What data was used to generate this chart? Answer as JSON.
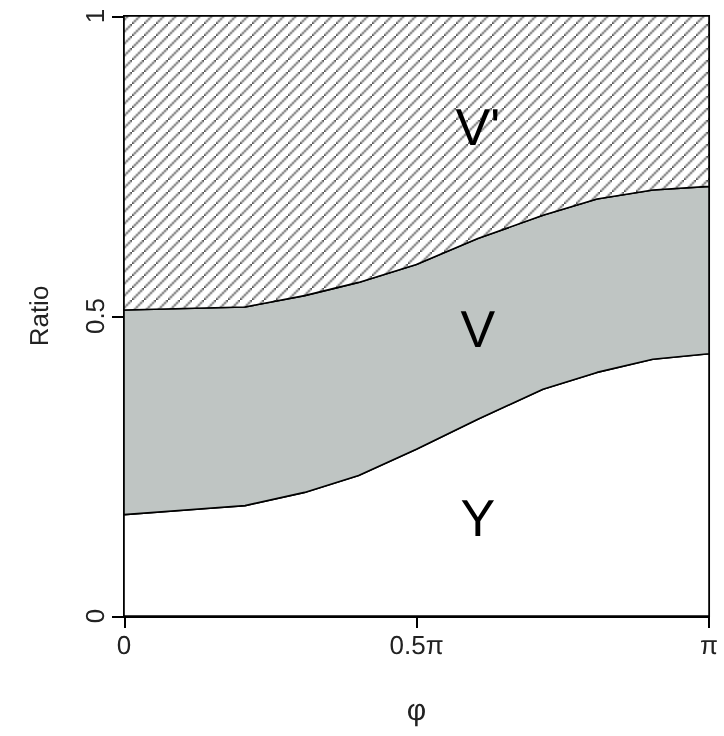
{
  "chart_data": {
    "type": "area",
    "stacked": true,
    "xlabel": "φ",
    "ylabel": "Ratio",
    "x": [
      0,
      0.65,
      0.97,
      1.26,
      1.57,
      1.9,
      2.25,
      2.54,
      2.84,
      3.1416
    ],
    "xlim": [
      0,
      3.1416
    ],
    "xticks": [
      {
        "value": 0,
        "label": "0"
      },
      {
        "value": 1.5708,
        "label": "0.5π"
      },
      {
        "value": 3.1416,
        "label": "π"
      }
    ],
    "ylim": [
      0,
      1
    ],
    "yticks": [
      0,
      0.5,
      1
    ],
    "grid": false,
    "legend": false,
    "series": [
      {
        "name": "Y",
        "color": "#ffffff",
        "values": [
          0.169,
          0.184,
          0.206,
          0.234,
          0.278,
          0.328,
          0.378,
          0.406,
          0.428,
          0.437
        ]
      },
      {
        "name": "V",
        "color": "#bfc5c3",
        "values": [
          0.341,
          0.331,
          0.328,
          0.322,
          0.308,
          0.301,
          0.29,
          0.289,
          0.282,
          0.279
        ]
      },
      {
        "name": "V'",
        "color": "#000000",
        "values": [
          0.49,
          0.485,
          0.466,
          0.444,
          0.414,
          0.371,
          0.332,
          0.305,
          0.29,
          0.284
        ]
      }
    ]
  }
}
